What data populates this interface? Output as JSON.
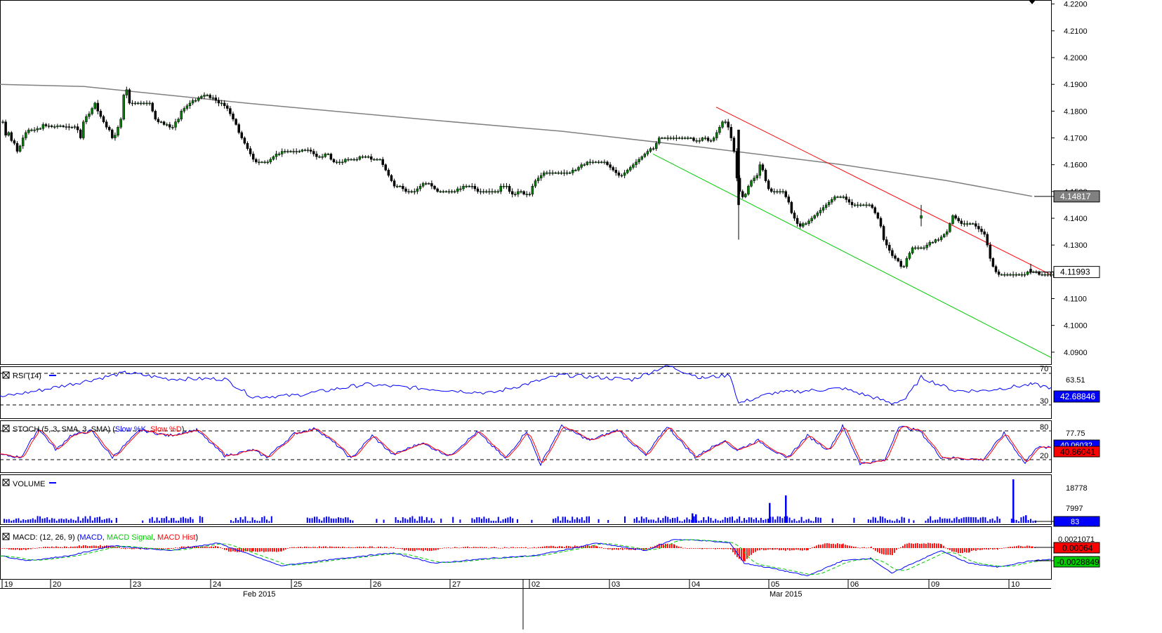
{
  "chart_data": [
    {
      "panel": "price",
      "type": "candlestick",
      "y_ticks": [
        "4.2200",
        "4.2100",
        "4.2000",
        "4.1900",
        "4.1800",
        "4.1700",
        "4.1600",
        "4.1500",
        "4.1400",
        "4.1300",
        "4.1200",
        "4.1100",
        "4.1000",
        "4.0900"
      ],
      "ylim": [
        4.0855,
        4.2215
      ],
      "price_labels": {
        "ma_value": "4.14817",
        "last_price": "4.11993"
      },
      "moving_average": [
        [
          0,
          4.19
        ],
        [
          120,
          4.1892
        ],
        [
          350,
          4.183
        ],
        [
          600,
          4.177
        ],
        [
          800,
          4.1725
        ],
        [
          1000,
          4.1665
        ],
        [
          1200,
          4.16
        ],
        [
          1350,
          4.154
        ],
        [
          1470,
          4.1482
        ]
      ],
      "channel": {
        "upper": [
          [
            1020,
            4.1815
          ],
          [
            1497,
            4.1189
          ]
        ],
        "lower": [
          [
            930,
            4.164
          ],
          [
            1497,
            4.088
          ]
        ]
      },
      "key_bars": [
        {
          "x": 1052,
          "o": 4.173,
          "h": 4.173,
          "l": 4.132,
          "c": 4.145
        },
        {
          "x": 1312,
          "o": 4.14,
          "h": 4.145,
          "l": 4.137,
          "c": 4.141
        },
        {
          "x": 1468,
          "o": 4.121,
          "h": 4.123,
          "l": 4.119,
          "c": 4.1199
        }
      ],
      "candles": {
        "x_start": 4,
        "x_step": 4.1,
        "y": [
          4.176,
          4.171,
          4.172,
          4.169,
          4.168,
          4.165,
          4.167,
          4.17,
          4.172,
          4.173,
          4.173,
          4.173,
          4.1735,
          4.1735,
          4.175,
          4.1745,
          4.1745,
          4.1742,
          4.1742,
          4.1745,
          4.1745,
          4.1742,
          4.1742,
          4.174,
          4.174,
          4.1742,
          4.173,
          4.17,
          4.176,
          4.178,
          4.179,
          4.181,
          4.183,
          4.18,
          4.178,
          4.176,
          4.174,
          4.173,
          4.17,
          4.171,
          4.174,
          4.177,
          4.186,
          4.188,
          4.183,
          4.183,
          4.183,
          4.183,
          4.183,
          4.183,
          4.183,
          4.183,
          4.18,
          4.177,
          4.176,
          4.176,
          4.175,
          4.175,
          4.174,
          4.174,
          4.176,
          4.177,
          4.18,
          4.181,
          4.182,
          4.183,
          4.184,
          4.184,
          4.185,
          4.1855,
          4.186,
          4.186,
          4.185,
          4.185,
          4.184,
          4.183,
          4.183,
          4.182,
          4.181,
          4.179,
          4.177,
          4.175,
          4.172,
          4.17,
          4.168,
          4.166,
          4.164,
          4.162,
          4.161,
          4.161,
          4.161,
          4.161,
          4.161,
          4.162,
          4.163,
          4.164,
          4.164,
          4.165,
          4.165,
          4.165,
          4.165,
          4.165,
          4.165,
          4.165,
          4.1655,
          4.1655,
          4.1655,
          4.165,
          4.164,
          4.163,
          4.163,
          4.163,
          4.164,
          4.164,
          4.162,
          4.161,
          4.161,
          4.161,
          4.161,
          4.162,
          4.162,
          4.162,
          4.162,
          4.162,
          4.163,
          4.163,
          4.163,
          4.163,
          4.162,
          4.162,
          4.162,
          4.162,
          4.16,
          4.158,
          4.156,
          4.154,
          4.152,
          4.152,
          4.152,
          4.151,
          4.15,
          4.15,
          4.15,
          4.15,
          4.151,
          4.152,
          4.153,
          4.153,
          4.153,
          4.152,
          4.151,
          4.15,
          4.15,
          4.15,
          4.15,
          4.15,
          4.15,
          4.15,
          4.151,
          4.151,
          4.152,
          4.152,
          4.152,
          4.152,
          4.151,
          4.15,
          4.15,
          4.15,
          4.15,
          4.15,
          4.15,
          4.15,
          4.15,
          4.152,
          4.152,
          4.152,
          4.15,
          4.149,
          4.149,
          4.15,
          4.15,
          4.149,
          4.149,
          4.149,
          4.152,
          4.154,
          4.155,
          4.156,
          4.157,
          4.157,
          4.157,
          4.157,
          4.157,
          4.157,
          4.157,
          4.157,
          4.157,
          4.157,
          4.158,
          4.158,
          4.159,
          4.16,
          4.16,
          4.161,
          4.161,
          4.161,
          4.161,
          4.161,
          4.161,
          4.161,
          4.16,
          4.159,
          4.158,
          4.157,
          4.156,
          4.156,
          4.157,
          4.158,
          4.159,
          4.16,
          4.161,
          4.162,
          4.163,
          4.164,
          4.165,
          4.166,
          4.166,
          4.168,
          4.17,
          4.17,
          4.17,
          4.17,
          4.17,
          4.17,
          4.17,
          4.17,
          4.17,
          4.17,
          4.17,
          4.17,
          4.169,
          4.169,
          4.169,
          4.17,
          4.17,
          4.169,
          4.169,
          4.17,
          4.172,
          4.174,
          4.176,
          4.176,
          4.174,
          4.17,
          4.165,
          4.155,
          4.15,
          4.148,
          4.149,
          4.152,
          4.154,
          4.155,
          4.156,
          4.16,
          4.158,
          4.154,
          4.151,
          4.15,
          4.15,
          4.15,
          4.15,
          4.15,
          4.148,
          4.146,
          4.142,
          4.14,
          4.138,
          4.137,
          4.138,
          4.138,
          4.139,
          4.14,
          4.141,
          4.142,
          4.143,
          4.144,
          4.145,
          4.146,
          4.147,
          4.148,
          4.148,
          4.148,
          4.148,
          4.147,
          4.146,
          4.145,
          4.145,
          4.145,
          4.145,
          4.145,
          4.145,
          4.145,
          4.144,
          4.142,
          4.14,
          4.137,
          4.132,
          4.13,
          4.128,
          4.126,
          4.125,
          4.124,
          4.122,
          4.122,
          4.125,
          4.127,
          4.129,
          4.129,
          4.129,
          4.129,
          4.129,
          4.13,
          4.131,
          4.131,
          4.132,
          4.132,
          4.133,
          4.134,
          4.135,
          4.138,
          4.141,
          4.14,
          4.139,
          4.138,
          4.138,
          4.138,
          4.138,
          4.138,
          4.137,
          4.136,
          4.135,
          4.134,
          4.13,
          4.125,
          4.122,
          4.12,
          4.119,
          4.119,
          4.119,
          4.119,
          4.119,
          4.119,
          4.119,
          4.119,
          4.119,
          4.119,
          4.12,
          4.12,
          4.12,
          4.12,
          4.119,
          4.119,
          4.119,
          4.119,
          4.119,
          4.119,
          4.12,
          4.12,
          4.12,
          4.12,
          4.12,
          4.121,
          4.121,
          4.12,
          4.12,
          4.12,
          4.12
        ]
      }
    },
    {
      "panel": "rsi",
      "type": "line",
      "label": "RSI (14)",
      "levels": [
        "70",
        "30"
      ],
      "scale_label": "63.51",
      "value_label": "42.68846",
      "series_color": "#0000ff",
      "keypoints": [
        [
          0,
          40
        ],
        [
          60,
          49
        ],
        [
          110,
          58
        ],
        [
          180,
          71
        ],
        [
          240,
          63
        ],
        [
          320,
          63
        ],
        [
          360,
          40
        ],
        [
          420,
          42
        ],
        [
          520,
          56
        ],
        [
          600,
          51
        ],
        [
          700,
          45
        ],
        [
          800,
          68
        ],
        [
          900,
          62
        ],
        [
          950,
          80
        ],
        [
          1000,
          64
        ],
        [
          1040,
          68
        ],
        [
          1052,
          32
        ],
        [
          1100,
          45
        ],
        [
          1200,
          51
        ],
        [
          1250,
          38
        ],
        [
          1270,
          32
        ],
        [
          1290,
          38
        ],
        [
          1312,
          65
        ],
        [
          1360,
          48
        ],
        [
          1400,
          48
        ],
        [
          1470,
          56
        ],
        [
          1497,
          52
        ]
      ]
    },
    {
      "panel": "stoch",
      "type": "line",
      "label": "STOCH (5, 3, SMA, 3, SMA)",
      "legend": [
        "Slow %K",
        "Slow %D"
      ],
      "levels": [
        "80",
        "20"
      ],
      "scale_label": "77.75",
      "value_labels": [
        "40.06032",
        "40.86041"
      ],
      "series_colors": [
        "#0000ff",
        "#ff0000"
      ],
      "keypoints": [
        [
          0,
          30
        ],
        [
          30,
          25
        ],
        [
          55,
          85
        ],
        [
          80,
          40
        ],
        [
          100,
          70
        ],
        [
          130,
          80
        ],
        [
          160,
          25
        ],
        [
          200,
          82
        ],
        [
          240,
          70
        ],
        [
          280,
          82
        ],
        [
          320,
          28
        ],
        [
          360,
          40
        ],
        [
          380,
          25
        ],
        [
          420,
          75
        ],
        [
          450,
          85
        ],
        [
          480,
          50
        ],
        [
          500,
          22
        ],
        [
          530,
          70
        ],
        [
          560,
          30
        ],
        [
          600,
          55
        ],
        [
          640,
          28
        ],
        [
          680,
          78
        ],
        [
          720,
          22
        ],
        [
          750,
          80
        ],
        [
          770,
          10
        ],
        [
          800,
          90
        ],
        [
          840,
          60
        ],
        [
          880,
          82
        ],
        [
          920,
          28
        ],
        [
          950,
          90
        ],
        [
          990,
          25
        ],
        [
          1030,
          60
        ],
        [
          1050,
          40
        ],
        [
          1080,
          60
        ],
        [
          1120,
          22
        ],
        [
          1150,
          70
        ],
        [
          1180,
          40
        ],
        [
          1200,
          90
        ],
        [
          1225,
          12
        ],
        [
          1260,
          18
        ],
        [
          1280,
          90
        ],
        [
          1310,
          80
        ],
        [
          1340,
          25
        ],
        [
          1400,
          20
        ],
        [
          1430,
          75
        ],
        [
          1460,
          12
        ],
        [
          1475,
          45
        ],
        [
          1497,
          45
        ]
      ]
    },
    {
      "panel": "volume",
      "type": "bar",
      "label": "VOLUME",
      "scale_labels": [
        "18778",
        "7997"
      ],
      "value_label": "83",
      "series_color": "#0000ff",
      "bars": [
        [
          1095,
          10500
        ],
        [
          1118,
          14500
        ],
        [
          1442,
          23000
        ],
        [
          1460,
          4000
        ],
        [
          985,
          5000
        ],
        [
          990,
          4500
        ]
      ],
      "baseline_level": 2000
    },
    {
      "panel": "macd",
      "type": "line",
      "label": "MACD: (12, 26, 9)",
      "legend": [
        "MACD",
        "MACD Signal",
        "MACD Hist"
      ],
      "scale_label": "0.0021071",
      "value_labels": [
        "0.00064",
        "-0.0028849"
      ],
      "series_colors": [
        "#0000ff",
        "#00bb00",
        "#ff0000"
      ],
      "keypoints": [
        [
          0,
          -0.003
        ],
        [
          40,
          -0.005
        ],
        [
          100,
          -0.003
        ],
        [
          160,
          0.001
        ],
        [
          240,
          -0.001
        ],
        [
          310,
          0.002
        ],
        [
          360,
          -0.003
        ],
        [
          400,
          -0.007
        ],
        [
          460,
          -0.005
        ],
        [
          520,
          -0.003
        ],
        [
          560,
          -0.002
        ],
        [
          620,
          -0.006
        ],
        [
          700,
          -0.004
        ],
        [
          760,
          -0.003
        ],
        [
          800,
          -0.001
        ],
        [
          850,
          0.002
        ],
        [
          920,
          -0.001
        ],
        [
          960,
          0.0035
        ],
        [
          1000,
          0.003
        ],
        [
          1040,
          0.002
        ],
        [
          1060,
          -0.006
        ],
        [
          1100,
          -0.008
        ],
        [
          1150,
          -0.011
        ],
        [
          1200,
          -0.005
        ],
        [
          1240,
          -0.004
        ],
        [
          1270,
          -0.01
        ],
        [
          1300,
          -0.006
        ],
        [
          1340,
          -0.001
        ],
        [
          1380,
          -0.006
        ],
        [
          1420,
          -0.0075
        ],
        [
          1470,
          -0.005
        ],
        [
          1497,
          -0.0045
        ]
      ]
    }
  ],
  "x_axis": {
    "day_labels": [
      {
        "x": 6,
        "text": "19"
      },
      {
        "x": 75,
        "text": "20"
      },
      {
        "x": 189,
        "text": "23"
      },
      {
        "x": 303,
        "text": "24"
      },
      {
        "x": 418,
        "text": "25"
      },
      {
        "x": 531,
        "text": "26"
      },
      {
        "x": 644,
        "text": "27"
      },
      {
        "x": 757,
        "text": "02"
      },
      {
        "x": 871,
        "text": "03"
      },
      {
        "x": 985,
        "text": "04"
      },
      {
        "x": 1098,
        "text": "05"
      },
      {
        "x": 1211,
        "text": "06"
      },
      {
        "x": 1326,
        "text": "09"
      },
      {
        "x": 1440,
        "text": "10"
      }
    ],
    "month_labels": [
      {
        "x": 346,
        "text": "Feb 2015"
      },
      {
        "x": 1096,
        "text": "Mar 2015"
      }
    ]
  }
}
